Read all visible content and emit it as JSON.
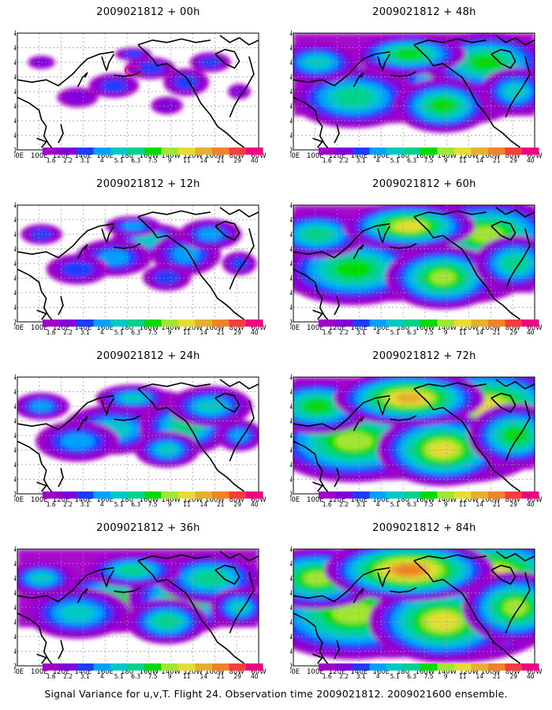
{
  "panels": [
    {
      "title": "2009021812 + 00h",
      "intensity": 0
    },
    {
      "title": "2009021812 + 12h",
      "intensity": 1
    },
    {
      "title": "2009021812 + 24h",
      "intensity": 2
    },
    {
      "title": "2009021812 + 36h",
      "intensity": 3
    },
    {
      "title": "2009021812 + 48h",
      "intensity": 4
    },
    {
      "title": "2009021812 + 60h",
      "intensity": 5
    },
    {
      "title": "2009021812 + 72h",
      "intensity": 6
    },
    {
      "title": "2009021812 + 84h",
      "intensity": 7
    }
  ],
  "axes": {
    "lon_labels": [
      "80E",
      "100E",
      "120E",
      "140E",
      "160E",
      "180",
      "160W",
      "140W",
      "120W",
      "100W",
      "80W",
      "60W"
    ],
    "lat_labels": [
      "EQ",
      "10N",
      "20N",
      "30N",
      "40N",
      "50N",
      "60N",
      "70N",
      "80N"
    ]
  },
  "colorbar": {
    "labels": [
      "1.6",
      "2.2",
      "3.1",
      "4",
      "5.1",
      "6.3",
      "7.5",
      "9",
      "11",
      "14",
      "21",
      "29",
      "40"
    ],
    "colors": [
      "#a000c8",
      "#8200dc",
      "#1e3cff",
      "#00a0ff",
      "#00c8c8",
      "#00d28c",
      "#00dc00",
      "#a0e632",
      "#e6dc32",
      "#e6af2d",
      "#f08228",
      "#fa3c3c",
      "#f00082"
    ]
  },
  "caption": "Signal Variance for u,v,T. Flight 24. Observation time 2009021812. 2009021600 ensemble."
}
